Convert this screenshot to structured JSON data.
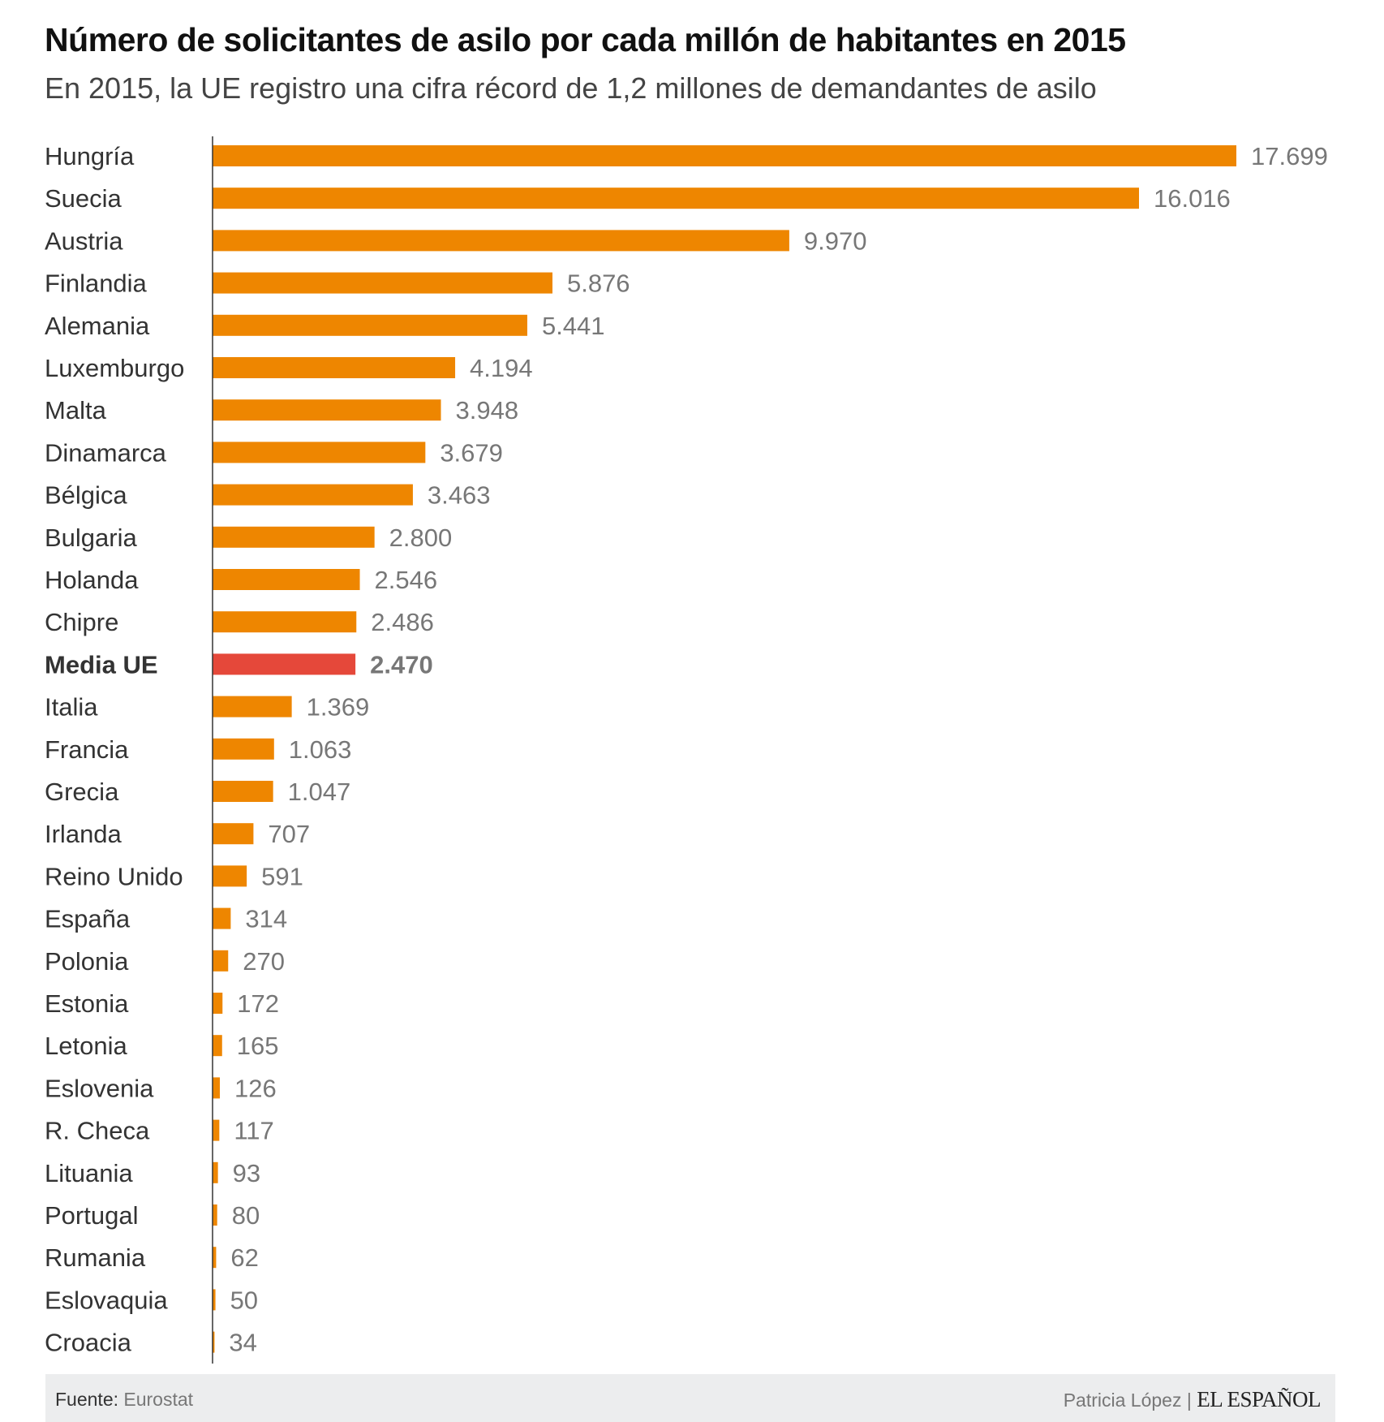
{
  "title": "Número de solicitantes de asilo por cada millón de habitantes en 2015",
  "subtitle": "En 2015, la UE registro una cifra récord de 1,2 millones de demandantes de asilo",
  "footer": {
    "source_label": "Fuente:",
    "source_value": "Eurostat",
    "author": "Patricia López |",
    "logo_text": "EL ESPAÑOL"
  },
  "colors": {
    "bar": "#ee8600",
    "highlight": "#e5483a",
    "label": "#333333",
    "value": "#777777"
  },
  "chart_data": {
    "type": "bar",
    "orientation": "horizontal",
    "title": "Número de solicitantes de asilo por cada millón de habitantes en 2015",
    "xlabel": "",
    "ylabel": "",
    "xlim": [
      0,
      17699
    ],
    "grid": false,
    "highlight_category": "Media UE",
    "categories": [
      "Hungría",
      "Suecia",
      "Austria",
      "Finlandia",
      "Alemania",
      "Luxemburgo",
      "Malta",
      "Dinamarca",
      "Bélgica",
      "Bulgaria",
      "Holanda",
      "Chipre",
      "Media UE",
      "Italia",
      "Francia",
      "Grecia",
      "Irlanda",
      "Reino Unido",
      "España",
      "Polonia",
      "Estonia",
      "Letonia",
      "Eslovenia",
      "R. Checa",
      "Lituania",
      "Portugal",
      "Rumania",
      "Eslovaquia",
      "Croacia"
    ],
    "values": [
      17699,
      16016,
      9970,
      5876,
      5441,
      4194,
      3948,
      3679,
      3463,
      2800,
      2546,
      2486,
      2470,
      1369,
      1063,
      1047,
      707,
      591,
      314,
      270,
      172,
      165,
      126,
      117,
      93,
      80,
      62,
      50,
      34
    ],
    "value_labels": [
      "17.699",
      "16.016",
      "9.970",
      "5.876",
      "5.441",
      "4.194",
      "3.948",
      "3.679",
      "3.463",
      "2.800",
      "2.546",
      "2.486",
      "2.470",
      "1.369",
      "1.063",
      "1.047",
      "707",
      "591",
      "314",
      "270",
      "172",
      "165",
      "126",
      "117",
      "93",
      "80",
      "62",
      "50",
      "34"
    ]
  }
}
